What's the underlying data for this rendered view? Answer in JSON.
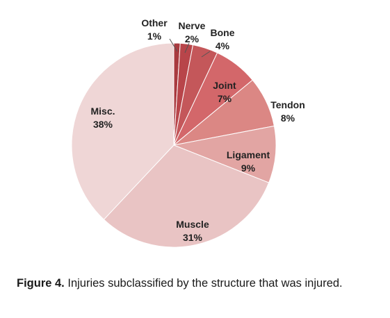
{
  "chart_data": {
    "type": "pie",
    "start_angle_deg": 0,
    "direction": "clockwise",
    "slices": [
      {
        "label": "Other",
        "value": 1,
        "value_label": "1%",
        "color": "#a83a3f"
      },
      {
        "label": "Nerve",
        "value": 2,
        "value_label": "2%",
        "color": "#b8454a"
      },
      {
        "label": "Bone",
        "value": 4,
        "value_label": "4%",
        "color": "#c4575a"
      },
      {
        "label": "Joint",
        "value": 7,
        "value_label": "7%",
        "color": "#d3676a"
      },
      {
        "label": "Tendon",
        "value": 8,
        "value_label": "8%",
        "color": "#db8784"
      },
      {
        "label": "Ligament",
        "value": 9,
        "value_label": "9%",
        "color": "#e2a5a3"
      },
      {
        "label": "Muscle",
        "value": 31,
        "value_label": "31%",
        "color": "#e9c4c4"
      },
      {
        "label": "Misc.",
        "value": 38,
        "value_label": "38%",
        "color": "#efd6d6"
      }
    ]
  },
  "caption": {
    "label": "Figure 4.",
    "text": "Injuries subclassified by the structure that was injured."
  }
}
